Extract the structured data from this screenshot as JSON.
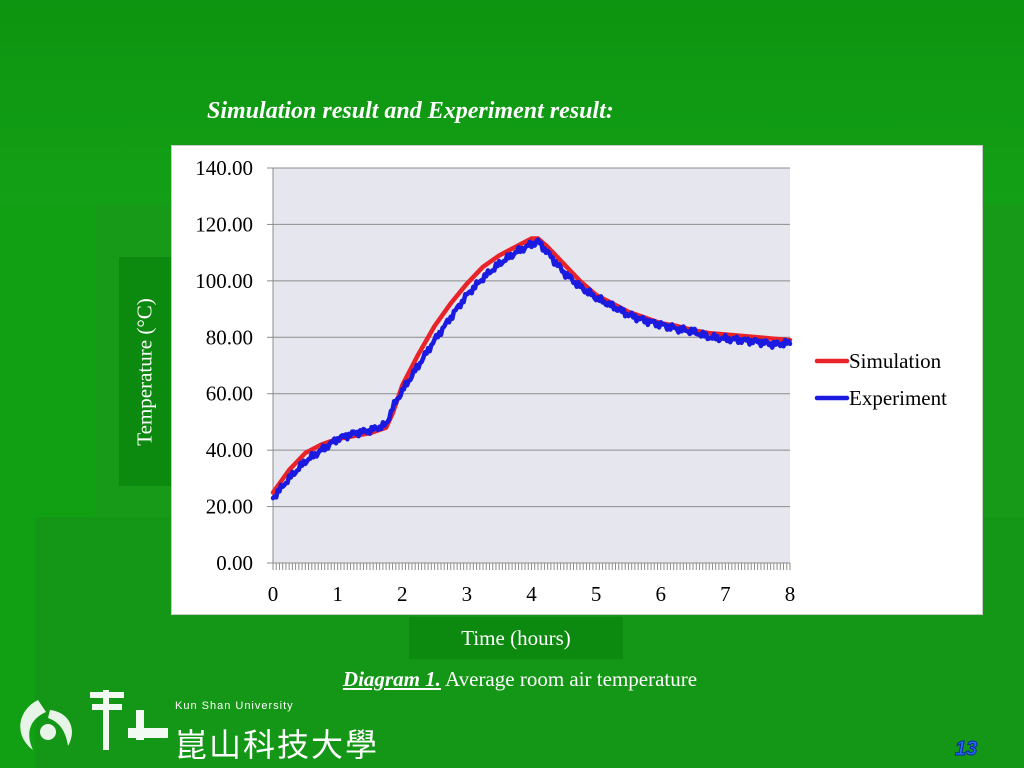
{
  "slide": {
    "title": "Simulation result and Experiment result:",
    "caption_lead": "Diagram 1.",
    "caption_text": " Average room air temperature",
    "page_number": "13",
    "logo_english": "Kun Shan University",
    "logo_chinese": "崑山科技大學"
  },
  "colors": {
    "background": "#11a014",
    "simulation": "#e8242a",
    "experiment": "#1a1ae0",
    "plot_area": "#e6e6ef",
    "page_number": "#2a6bff"
  },
  "chart_data": {
    "type": "line",
    "title": "",
    "xlabel": "Time (hours)",
    "ylabel": "Temperature (°C)",
    "xlim": [
      0,
      8
    ],
    "ylim": [
      0,
      140
    ],
    "x_ticks": [
      "0",
      "1",
      "2",
      "3",
      "4",
      "5",
      "6",
      "7",
      "8"
    ],
    "y_ticks": [
      "0.00",
      "20.00",
      "40.00",
      "60.00",
      "80.00",
      "100.00",
      "120.00",
      "140.00"
    ],
    "grid": true,
    "legend": "right",
    "series": [
      {
        "name": "Simulation",
        "color": "#e8242a",
        "x": [
          0,
          0.25,
          0.5,
          0.75,
          1.0,
          1.25,
          1.5,
          1.75,
          1.85,
          2.0,
          2.25,
          2.5,
          2.75,
          3.0,
          3.25,
          3.5,
          3.75,
          4.0,
          4.1,
          4.25,
          4.5,
          4.75,
          5.0,
          5.25,
          5.5,
          5.75,
          6.0,
          6.25,
          6.5,
          6.75,
          7.0,
          7.25,
          7.5,
          7.75,
          8.0
        ],
        "y": [
          25,
          33,
          39,
          42,
          44,
          45,
          46,
          48,
          53,
          63,
          74,
          84,
          92,
          99,
          105,
          109,
          112,
          115,
          115,
          112,
          106,
          100,
          95,
          92,
          89,
          87,
          85,
          84,
          82.5,
          81.5,
          81,
          80.5,
          80,
          79.5,
          79
        ]
      },
      {
        "name": "Experiment",
        "color": "#1a1ae0",
        "x": [
          0,
          0.25,
          0.5,
          0.75,
          1.0,
          1.25,
          1.5,
          1.75,
          1.85,
          2.0,
          2.25,
          2.5,
          2.75,
          3.0,
          3.25,
          3.5,
          3.75,
          4.0,
          4.1,
          4.25,
          4.5,
          4.75,
          5.0,
          5.25,
          5.5,
          5.75,
          6.0,
          6.25,
          6.5,
          6.75,
          7.0,
          7.25,
          7.5,
          7.75,
          8.0
        ],
        "y": [
          23,
          30,
          36,
          40,
          44,
          46,
          47,
          49,
          55,
          61,
          70,
          79,
          87,
          95,
          101,
          106,
          110,
          113,
          114,
          110,
          103,
          98,
          94,
          91,
          88,
          86,
          84.5,
          83,
          82,
          80,
          79.5,
          79,
          78.5,
          77.5,
          78
        ]
      }
    ]
  }
}
